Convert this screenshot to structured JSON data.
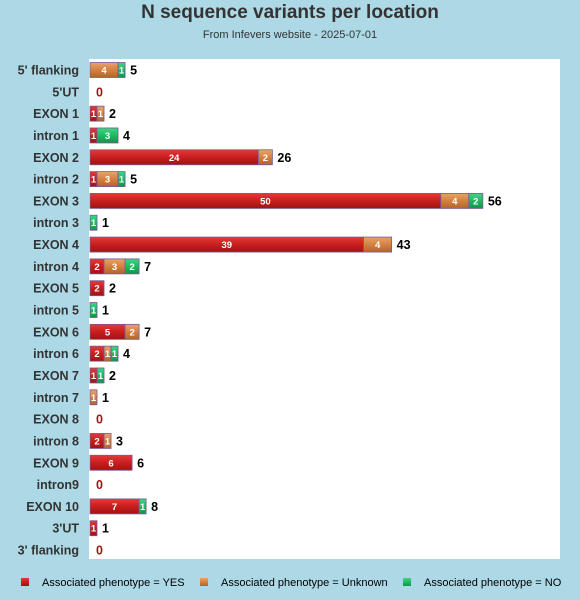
{
  "chart_data": {
    "type": "bar",
    "orientation": "horizontal",
    "stacked": true,
    "title": "N sequence variants per location",
    "subtitle": "From Infevers website - 2025-07-01",
    "categories": [
      "5' flanking",
      "5'UT",
      "EXON 1",
      "intron 1",
      "EXON 2",
      "intron 2",
      "EXON 3",
      "intron 3",
      "EXON 4",
      "intron 4",
      "EXON 5",
      "intron 5",
      "EXON 6",
      "intron 6",
      "EXON 7",
      "intron 7",
      "EXON 8",
      "intron 8",
      "EXON 9",
      "intron9",
      "EXON 10",
      "3'UT",
      "3' flanking"
    ],
    "series": [
      {
        "name": "Associated phenotype = YES",
        "color": "#cc2222",
        "values": [
          0,
          0,
          1,
          1,
          24,
          1,
          50,
          0,
          39,
          2,
          2,
          0,
          5,
          2,
          1,
          0,
          0,
          2,
          6,
          0,
          7,
          1,
          0
        ]
      },
      {
        "name": "Associated phenotype = Unknown",
        "color": "#d9844a",
        "values": [
          4,
          0,
          1,
          0,
          2,
          3,
          4,
          0,
          4,
          3,
          0,
          0,
          2,
          1,
          0,
          1,
          0,
          1,
          0,
          0,
          0,
          0,
          0
        ]
      },
      {
        "name": "Associated phenotype = NO",
        "color": "#22bb66",
        "values": [
          1,
          0,
          0,
          3,
          0,
          1,
          2,
          1,
          0,
          2,
          0,
          1,
          0,
          1,
          1,
          0,
          0,
          0,
          0,
          0,
          1,
          0,
          0
        ]
      }
    ],
    "totals": [
      5,
      0,
      2,
      4,
      26,
      5,
      56,
      1,
      43,
      7,
      2,
      1,
      7,
      4,
      2,
      1,
      0,
      3,
      6,
      0,
      8,
      1,
      0
    ],
    "xlim": [
      0,
      67
    ],
    "grid": false,
    "legend_position": "bottom",
    "zero_label_color": "#aa1111",
    "total_label_color": "#000000"
  }
}
